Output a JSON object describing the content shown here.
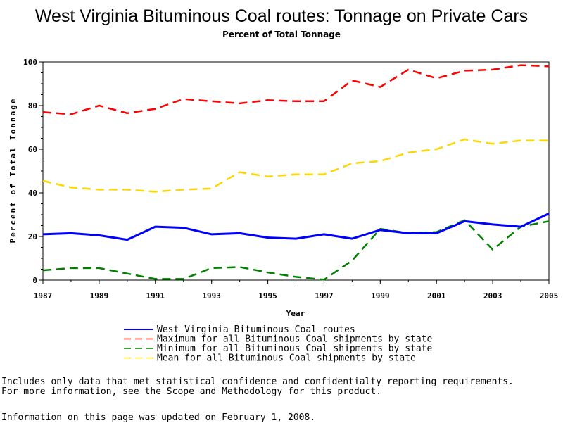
{
  "chart_data": {
    "type": "line",
    "title": "West Virginia Bituminous Coal routes: Tonnage on Private Cars",
    "subtitle": "Percent of Total Tonnage",
    "xlabel": "Year",
    "ylabel": "Percent of Total Tonnage",
    "xlim": [
      1987,
      2005
    ],
    "ylim": [
      0,
      100
    ],
    "x_ticks": [
      "1987",
      "1989",
      "1991",
      "1993",
      "1995",
      "1997",
      "1999",
      "2001",
      "2003",
      "2005"
    ],
    "y_ticks": [
      "0",
      "20",
      "40",
      "60",
      "80",
      "100"
    ],
    "grid": false,
    "legend_position": "bottom",
    "x": [
      1987,
      1988,
      1989,
      1990,
      1991,
      1992,
      1993,
      1994,
      1995,
      1996,
      1997,
      1998,
      1999,
      2000,
      2001,
      2002,
      2003,
      2004,
      2005
    ],
    "series": [
      {
        "name": "West Virginia Bituminous Coal routes",
        "color": "#0000ff",
        "dash": "solid",
        "values": [
          21,
          21.5,
          20.5,
          18.5,
          24.5,
          24,
          21,
          21.5,
          19.5,
          19,
          21,
          19,
          23,
          21.5,
          21.5,
          27,
          25.5,
          24.5,
          30.5
        ]
      },
      {
        "name": "Maximum for all Bituminous Coal shipments by state",
        "color": "#ff0000",
        "dash": "dashed",
        "values": [
          77,
          76,
          80,
          76.5,
          78.5,
          83,
          82,
          81,
          82.5,
          82,
          82,
          91.5,
          88.5,
          96.5,
          92.5,
          96,
          96.5,
          98.5,
          98
        ]
      },
      {
        "name": "Minimum for all Bituminous Coal shipments by state",
        "color": "#008000",
        "dash": "dashed",
        "values": [
          4.5,
          5.5,
          5.5,
          3,
          0.5,
          0.5,
          5.5,
          6,
          3.5,
          1.5,
          0.2,
          9,
          23.5,
          21.5,
          22,
          27.5,
          14,
          24.5,
          27
        ]
      },
      {
        "name": "Mean for all Bituminous Coal shipments by state",
        "color": "#ffd700",
        "dash": "dashed",
        "values": [
          45.5,
          42.5,
          41.5,
          41.5,
          40.5,
          41.5,
          42,
          49.5,
          47.5,
          48.5,
          48.5,
          53.5,
          54.5,
          58.5,
          60,
          64.5,
          62.5,
          64,
          64
        ]
      }
    ]
  },
  "notes": {
    "line1": "Includes only data that met statistical confidence and confidentialty reporting requirements.",
    "line2": "For more information, see the Scope and Methodology for this product.",
    "updated": "Information on this page was updated on February 1, 2008."
  }
}
